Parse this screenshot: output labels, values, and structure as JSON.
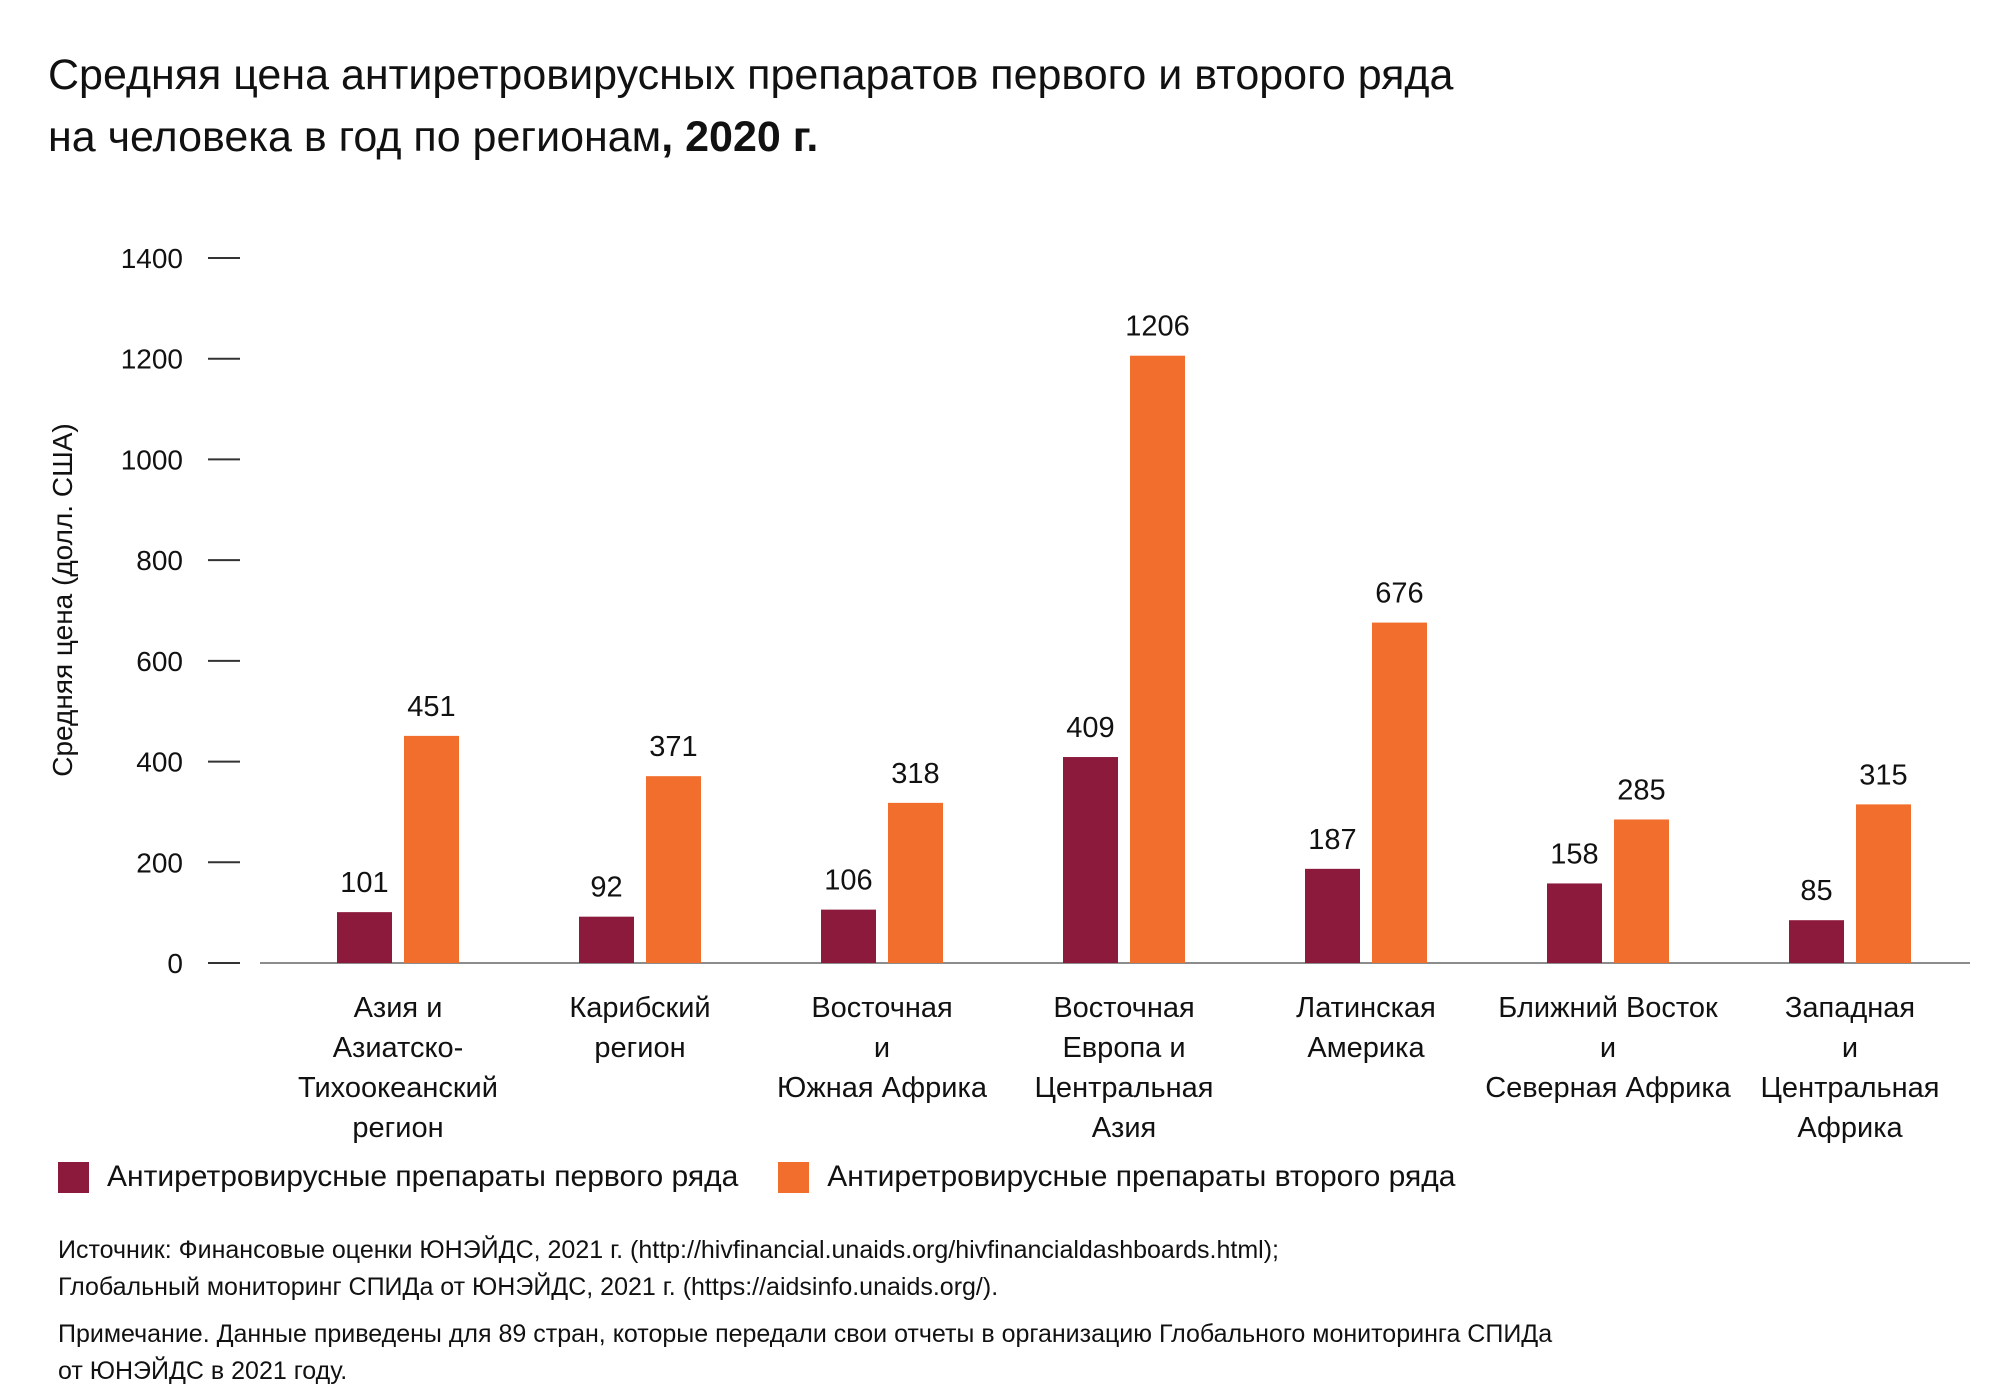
{
  "title": {
    "line1": "Средняя цена антиретровирусных препаратов первого и второго ряда",
    "line2_regular": "на человека в год по регионам",
    "line2_bold": ", 2020 г."
  },
  "colors": {
    "first_line": "#8b1a3d",
    "second_line": "#f26e2c",
    "axis": "#666666"
  },
  "chart_data": {
    "type": "bar",
    "ylabel": "Средняя цена (долл. США)",
    "ylim": [
      0,
      1400
    ],
    "yticks": [
      0,
      200,
      400,
      600,
      800,
      1000,
      1200,
      1400
    ],
    "grid": false,
    "legend_position": "bottom",
    "categories": [
      [
        "Азия и",
        "Азиатско-",
        "Тихоокеанский",
        "регион"
      ],
      [
        "Карибский",
        "регион"
      ],
      [
        "Восточная",
        "и",
        "Южная Африка"
      ],
      [
        "Восточная",
        "Европа и",
        "Центральная",
        "Азия"
      ],
      [
        "Латинская",
        "Америка"
      ],
      [
        "Ближний Восток",
        "и",
        "Северная Африка"
      ],
      [
        "Западная",
        "и",
        "Центральная",
        "Африка"
      ]
    ],
    "series": [
      {
        "name": "Антиретровирусные препараты первого ряда",
        "values": [
          101,
          92,
          106,
          409,
          187,
          158,
          85
        ]
      },
      {
        "name": "Антиретровирусные препараты второго ряда",
        "values": [
          451,
          371,
          318,
          1206,
          676,
          285,
          315
        ]
      }
    ]
  },
  "legend": {
    "first_line": "Антиретровирусные препараты первого ряда",
    "second_line": "Антиретровирусные препараты второго ряда"
  },
  "notes": {
    "source_line1": "Источник: Финансовые оценки ЮНЭЙДС, 2021 г. (http://hivfinancial.unaids.org/hivfinancialdashboards.html);",
    "source_line2": "Глобальный мониторинг СПИДа от ЮНЭЙДС, 2021 г. (https://aidsinfo.unaids.org/).",
    "note_line1": "Примечание. Данные приведены для 89 стран, которые передали свои отчеты в организацию Глобального мониторинга СПИДа",
    "note_line2": "от ЮНЭЙДС в 2021 году."
  }
}
